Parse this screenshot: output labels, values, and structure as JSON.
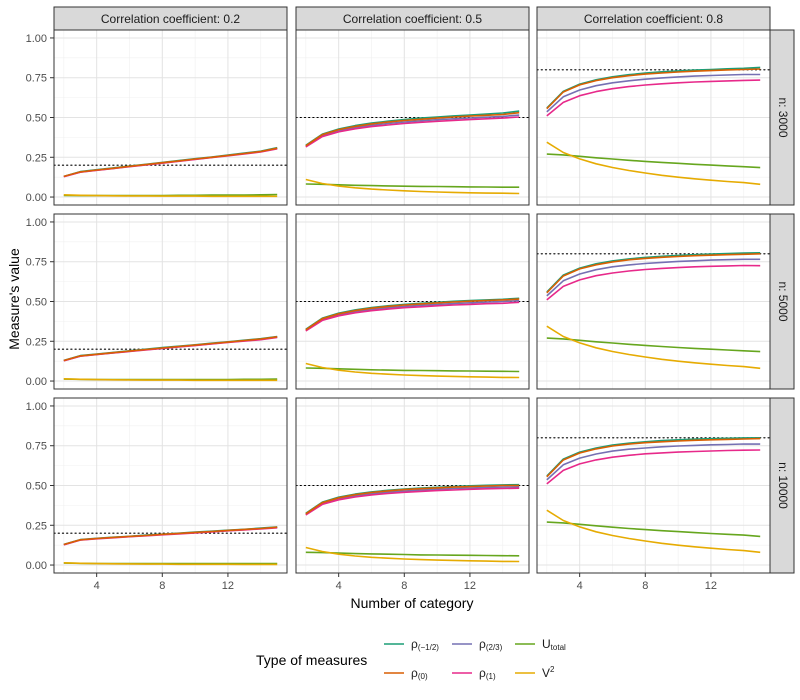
{
  "chart_data": {
    "type": "line",
    "xlabel": "Number of category",
    "ylabel": "Measure's value",
    "xlim": [
      1.4,
      15.6
    ],
    "ylim": [
      -0.05,
      1.05
    ],
    "xticks": [
      4,
      8,
      12
    ],
    "yticks": [
      0.0,
      0.25,
      0.5,
      0.75,
      1.0
    ],
    "ytick_labels": [
      "0.00",
      "0.25",
      "0.50",
      "0.75",
      "1.00"
    ],
    "grid": true,
    "x": [
      2,
      3,
      4,
      5,
      6,
      7,
      8,
      9,
      10,
      11,
      12,
      13,
      14,
      15
    ],
    "col_labels": [
      "Correlation coefficient:  0.2",
      "Correlation coefficient:  0.5",
      "Correlation coefficient:  0.8"
    ],
    "row_labels": [
      "n: 3000",
      "n: 5000",
      "n: 10000"
    ],
    "reference_lines": [
      0.2,
      0.5,
      0.8
    ],
    "legend": {
      "title": "Type of measures",
      "position": "bottom",
      "items": [
        {
          "key": "rho_m12",
          "base": "ρ",
          "sub": "(−1/2)",
          "sup": "",
          "color": "#1B9E77"
        },
        {
          "key": "rho_0",
          "base": "ρ",
          "sub": "(0)",
          "sup": "",
          "color": "#D95F02"
        },
        {
          "key": "rho_23",
          "base": "ρ",
          "sub": "(2/3)",
          "sup": "",
          "color": "#7570B3"
        },
        {
          "key": "rho_1",
          "base": "ρ",
          "sub": "(1)",
          "sup": "",
          "color": "#E7298A"
        },
        {
          "key": "U_total",
          "base": "U",
          "sub": "total",
          "sup": "",
          "color": "#66A61E"
        },
        {
          "key": "V2",
          "base": "V",
          "sub": "",
          "sup": "2",
          "color": "#E6AB02"
        }
      ]
    },
    "panels": [
      {
        "row": 0,
        "col": 0,
        "series": {
          "rho_m12": [
            0.13,
            0.16,
            0.172,
            0.183,
            0.195,
            0.206,
            0.218,
            0.229,
            0.241,
            0.252,
            0.264,
            0.276,
            0.288,
            0.31
          ],
          "rho_0": [
            0.13,
            0.158,
            0.17,
            0.181,
            0.193,
            0.204,
            0.216,
            0.227,
            0.239,
            0.25,
            0.262,
            0.274,
            0.286,
            0.307
          ],
          "rho_23": [
            0.129,
            0.157,
            0.169,
            0.18,
            0.192,
            0.203,
            0.215,
            0.226,
            0.238,
            0.249,
            0.261,
            0.273,
            0.285,
            0.305
          ],
          "rho_1": [
            0.128,
            0.156,
            0.168,
            0.179,
            0.191,
            0.202,
            0.213,
            0.225,
            0.236,
            0.248,
            0.259,
            0.271,
            0.283,
            0.303
          ],
          "U_total": [
            0.01,
            0.009,
            0.009,
            0.009,
            0.009,
            0.01,
            0.01,
            0.011,
            0.011,
            0.012,
            0.013,
            0.013,
            0.014,
            0.016
          ],
          "V2": [
            0.014,
            0.011,
            0.009,
            0.008,
            0.007,
            0.007,
            0.006,
            0.006,
            0.006,
            0.005,
            0.005,
            0.005,
            0.005,
            0.005
          ]
        }
      },
      {
        "row": 0,
        "col": 1,
        "series": {
          "rho_m12": [
            0.325,
            0.395,
            0.428,
            0.449,
            0.465,
            0.477,
            0.487,
            0.496,
            0.503,
            0.51,
            0.516,
            0.522,
            0.528,
            0.54
          ],
          "rho_0": [
            0.322,
            0.392,
            0.424,
            0.444,
            0.46,
            0.471,
            0.481,
            0.489,
            0.496,
            0.503,
            0.509,
            0.514,
            0.519,
            0.53
          ],
          "rho_23": [
            0.318,
            0.386,
            0.417,
            0.436,
            0.451,
            0.462,
            0.471,
            0.479,
            0.486,
            0.492,
            0.497,
            0.502,
            0.507,
            0.515
          ],
          "rho_1": [
            0.315,
            0.38,
            0.41,
            0.429,
            0.443,
            0.453,
            0.462,
            0.47,
            0.476,
            0.482,
            0.487,
            0.492,
            0.496,
            0.503
          ],
          "U_total": [
            0.082,
            0.08,
            0.077,
            0.074,
            0.072,
            0.07,
            0.068,
            0.067,
            0.066,
            0.065,
            0.064,
            0.063,
            0.062,
            0.062
          ],
          "V2": [
            0.11,
            0.085,
            0.069,
            0.058,
            0.05,
            0.044,
            0.039,
            0.035,
            0.032,
            0.029,
            0.027,
            0.025,
            0.024,
            0.022
          ]
        }
      },
      {
        "row": 0,
        "col": 2,
        "series": {
          "rho_m12": [
            0.56,
            0.665,
            0.71,
            0.737,
            0.756,
            0.769,
            0.779,
            0.787,
            0.793,
            0.798,
            0.802,
            0.806,
            0.809,
            0.815
          ],
          "rho_0": [
            0.555,
            0.66,
            0.705,
            0.732,
            0.75,
            0.763,
            0.773,
            0.78,
            0.786,
            0.791,
            0.795,
            0.799,
            0.802,
            0.805
          ],
          "rho_23": [
            0.535,
            0.63,
            0.673,
            0.7,
            0.718,
            0.731,
            0.741,
            0.749,
            0.755,
            0.76,
            0.764,
            0.767,
            0.77,
            0.77
          ],
          "rho_1": [
            0.51,
            0.595,
            0.637,
            0.663,
            0.681,
            0.694,
            0.704,
            0.712,
            0.718,
            0.723,
            0.727,
            0.73,
            0.733,
            0.735
          ],
          "U_total": [
            0.27,
            0.265,
            0.256,
            0.247,
            0.239,
            0.231,
            0.224,
            0.218,
            0.212,
            0.206,
            0.201,
            0.196,
            0.191,
            0.185
          ],
          "V2": [
            0.345,
            0.28,
            0.24,
            0.209,
            0.186,
            0.167,
            0.151,
            0.137,
            0.125,
            0.115,
            0.106,
            0.098,
            0.091,
            0.08
          ]
        }
      },
      {
        "row": 1,
        "col": 0,
        "series": {
          "rho_m12": [
            0.13,
            0.16,
            0.17,
            0.18,
            0.19,
            0.2,
            0.21,
            0.219,
            0.228,
            0.238,
            0.247,
            0.257,
            0.266,
            0.28
          ],
          "rho_0": [
            0.129,
            0.158,
            0.168,
            0.178,
            0.188,
            0.198,
            0.208,
            0.217,
            0.226,
            0.236,
            0.245,
            0.255,
            0.264,
            0.278
          ],
          "rho_23": [
            0.128,
            0.157,
            0.167,
            0.177,
            0.187,
            0.197,
            0.206,
            0.216,
            0.225,
            0.234,
            0.244,
            0.253,
            0.262,
            0.276
          ],
          "rho_1": [
            0.127,
            0.156,
            0.166,
            0.176,
            0.186,
            0.195,
            0.205,
            0.214,
            0.223,
            0.233,
            0.242,
            0.251,
            0.26,
            0.274
          ],
          "U_total": [
            0.012,
            0.011,
            0.01,
            0.009,
            0.009,
            0.009,
            0.009,
            0.009,
            0.01,
            0.01,
            0.01,
            0.011,
            0.011,
            0.012
          ],
          "V2": [
            0.014,
            0.011,
            0.009,
            0.008,
            0.007,
            0.006,
            0.006,
            0.006,
            0.005,
            0.005,
            0.005,
            0.005,
            0.005,
            0.005
          ]
        }
      },
      {
        "row": 1,
        "col": 1,
        "series": {
          "rho_m12": [
            0.325,
            0.395,
            0.427,
            0.447,
            0.462,
            0.473,
            0.482,
            0.489,
            0.495,
            0.501,
            0.506,
            0.51,
            0.514,
            0.52
          ],
          "rho_0": [
            0.322,
            0.392,
            0.423,
            0.443,
            0.458,
            0.469,
            0.478,
            0.485,
            0.491,
            0.497,
            0.502,
            0.506,
            0.51,
            0.515
          ],
          "rho_23": [
            0.318,
            0.386,
            0.416,
            0.436,
            0.45,
            0.461,
            0.469,
            0.476,
            0.482,
            0.487,
            0.492,
            0.496,
            0.5,
            0.505
          ],
          "rho_1": [
            0.315,
            0.381,
            0.41,
            0.429,
            0.442,
            0.452,
            0.461,
            0.467,
            0.473,
            0.478,
            0.482,
            0.486,
            0.489,
            0.495
          ],
          "U_total": [
            0.082,
            0.08,
            0.077,
            0.074,
            0.071,
            0.069,
            0.067,
            0.066,
            0.065,
            0.064,
            0.063,
            0.062,
            0.061,
            0.06
          ],
          "V2": [
            0.11,
            0.085,
            0.068,
            0.057,
            0.049,
            0.043,
            0.038,
            0.034,
            0.031,
            0.029,
            0.027,
            0.025,
            0.023,
            0.022
          ]
        }
      },
      {
        "row": 1,
        "col": 2,
        "series": {
          "rho_m12": [
            0.56,
            0.666,
            0.71,
            0.737,
            0.755,
            0.768,
            0.777,
            0.784,
            0.79,
            0.794,
            0.798,
            0.801,
            0.804,
            0.806
          ],
          "rho_0": [
            0.555,
            0.66,
            0.705,
            0.731,
            0.749,
            0.762,
            0.771,
            0.778,
            0.783,
            0.788,
            0.791,
            0.794,
            0.797,
            0.8
          ],
          "rho_23": [
            0.535,
            0.63,
            0.673,
            0.7,
            0.718,
            0.73,
            0.739,
            0.746,
            0.752,
            0.756,
            0.76,
            0.763,
            0.765,
            0.765
          ],
          "rho_1": [
            0.51,
            0.595,
            0.636,
            0.662,
            0.679,
            0.692,
            0.701,
            0.708,
            0.713,
            0.718,
            0.721,
            0.724,
            0.726,
            0.725
          ],
          "U_total": [
            0.27,
            0.265,
            0.256,
            0.247,
            0.239,
            0.231,
            0.224,
            0.217,
            0.211,
            0.205,
            0.2,
            0.195,
            0.19,
            0.185
          ],
          "V2": [
            0.345,
            0.28,
            0.24,
            0.209,
            0.186,
            0.167,
            0.151,
            0.137,
            0.125,
            0.115,
            0.106,
            0.098,
            0.091,
            0.08
          ]
        }
      },
      {
        "row": 2,
        "col": 0,
        "series": {
          "rho_m12": [
            0.13,
            0.16,
            0.168,
            0.175,
            0.181,
            0.188,
            0.194,
            0.2,
            0.207,
            0.213,
            0.219,
            0.225,
            0.232,
            0.24
          ],
          "rho_0": [
            0.129,
            0.159,
            0.167,
            0.174,
            0.18,
            0.186,
            0.193,
            0.199,
            0.205,
            0.211,
            0.218,
            0.224,
            0.23,
            0.238
          ],
          "rho_23": [
            0.128,
            0.158,
            0.166,
            0.173,
            0.179,
            0.185,
            0.192,
            0.198,
            0.204,
            0.21,
            0.216,
            0.222,
            0.229,
            0.236
          ],
          "rho_1": [
            0.127,
            0.157,
            0.165,
            0.171,
            0.178,
            0.184,
            0.19,
            0.196,
            0.202,
            0.208,
            0.215,
            0.221,
            0.227,
            0.234
          ],
          "U_total": [
            0.012,
            0.011,
            0.01,
            0.009,
            0.009,
            0.009,
            0.009,
            0.009,
            0.009,
            0.009,
            0.01,
            0.01,
            0.01,
            0.01
          ],
          "V2": [
            0.014,
            0.011,
            0.009,
            0.008,
            0.007,
            0.006,
            0.006,
            0.005,
            0.005,
            0.005,
            0.005,
            0.004,
            0.004,
            0.004
          ]
        }
      },
      {
        "row": 2,
        "col": 1,
        "series": {
          "rho_m12": [
            0.325,
            0.395,
            0.427,
            0.446,
            0.46,
            0.47,
            0.478,
            0.484,
            0.489,
            0.494,
            0.498,
            0.501,
            0.504,
            0.505
          ],
          "rho_0": [
            0.322,
            0.392,
            0.423,
            0.442,
            0.456,
            0.466,
            0.474,
            0.48,
            0.485,
            0.49,
            0.493,
            0.497,
            0.5,
            0.5
          ],
          "rho_23": [
            0.318,
            0.386,
            0.416,
            0.435,
            0.448,
            0.458,
            0.465,
            0.471,
            0.476,
            0.481,
            0.484,
            0.488,
            0.49,
            0.492
          ],
          "rho_1": [
            0.315,
            0.381,
            0.41,
            0.428,
            0.441,
            0.45,
            0.457,
            0.463,
            0.468,
            0.472,
            0.476,
            0.479,
            0.481,
            0.483
          ],
          "U_total": [
            0.08,
            0.078,
            0.075,
            0.072,
            0.07,
            0.068,
            0.066,
            0.064,
            0.063,
            0.062,
            0.061,
            0.06,
            0.059,
            0.058
          ],
          "V2": [
            0.11,
            0.085,
            0.068,
            0.057,
            0.049,
            0.043,
            0.038,
            0.034,
            0.031,
            0.029,
            0.027,
            0.025,
            0.023,
            0.022
          ]
        }
      },
      {
        "row": 2,
        "col": 2,
        "series": {
          "rho_m12": [
            0.56,
            0.666,
            0.71,
            0.736,
            0.754,
            0.766,
            0.775,
            0.782,
            0.787,
            0.791,
            0.794,
            0.797,
            0.799,
            0.8
          ],
          "rho_0": [
            0.555,
            0.66,
            0.704,
            0.73,
            0.748,
            0.76,
            0.769,
            0.775,
            0.78,
            0.784,
            0.787,
            0.79,
            0.792,
            0.795
          ],
          "rho_23": [
            0.535,
            0.63,
            0.672,
            0.698,
            0.716,
            0.728,
            0.736,
            0.743,
            0.748,
            0.752,
            0.756,
            0.758,
            0.761,
            0.76
          ],
          "rho_1": [
            0.51,
            0.595,
            0.636,
            0.661,
            0.678,
            0.69,
            0.699,
            0.705,
            0.71,
            0.714,
            0.717,
            0.72,
            0.722,
            0.723
          ],
          "U_total": [
            0.27,
            0.265,
            0.256,
            0.247,
            0.238,
            0.23,
            0.223,
            0.216,
            0.21,
            0.204,
            0.198,
            0.193,
            0.188,
            0.18
          ],
          "V2": [
            0.345,
            0.28,
            0.24,
            0.209,
            0.186,
            0.167,
            0.151,
            0.137,
            0.125,
            0.115,
            0.106,
            0.098,
            0.091,
            0.08
          ]
        }
      }
    ]
  }
}
